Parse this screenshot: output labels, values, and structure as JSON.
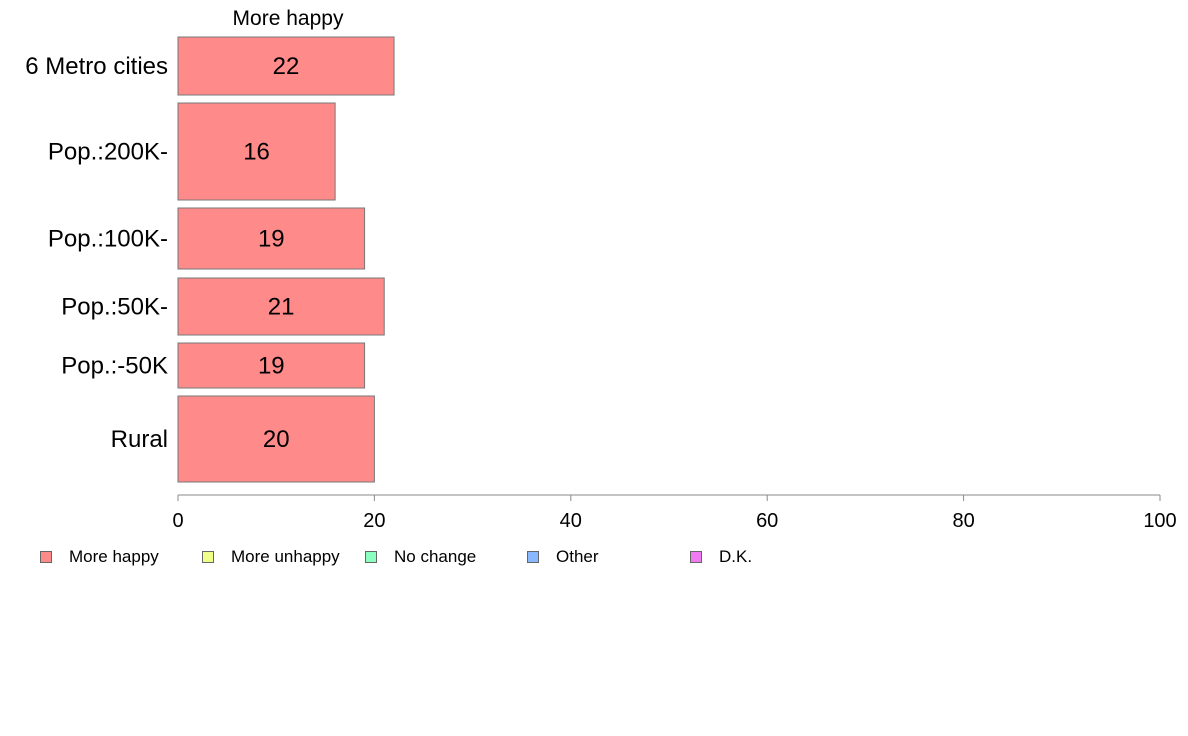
{
  "chart_data": {
    "type": "bar",
    "orientation": "horizontal",
    "stacked": true,
    "header": "More happy",
    "categories": [
      "6 Metro cities",
      "Pop.:200K-",
      "Pop.:100K-",
      "Pop.:50K-",
      "Pop.:-50K",
      "Rural"
    ],
    "series": [
      {
        "name": "More happy",
        "color": "#ff8a8a",
        "values": [
          22,
          16,
          19,
          21,
          19,
          20
        ]
      }
    ],
    "xlim": [
      0,
      100
    ],
    "xticks": [
      0,
      20,
      40,
      60,
      80,
      100
    ],
    "grid": false,
    "legend_position": "bottom-left",
    "legend": [
      {
        "label": "More happy",
        "color": "#ff8a8a"
      },
      {
        "label": "More unhappy",
        "color": "#f0ff8a"
      },
      {
        "label": "No change",
        "color": "#8affbf"
      },
      {
        "label": "Other",
        "color": "#8ab8ff"
      },
      {
        "label": "D.K.",
        "color": "#f07af0"
      }
    ]
  }
}
